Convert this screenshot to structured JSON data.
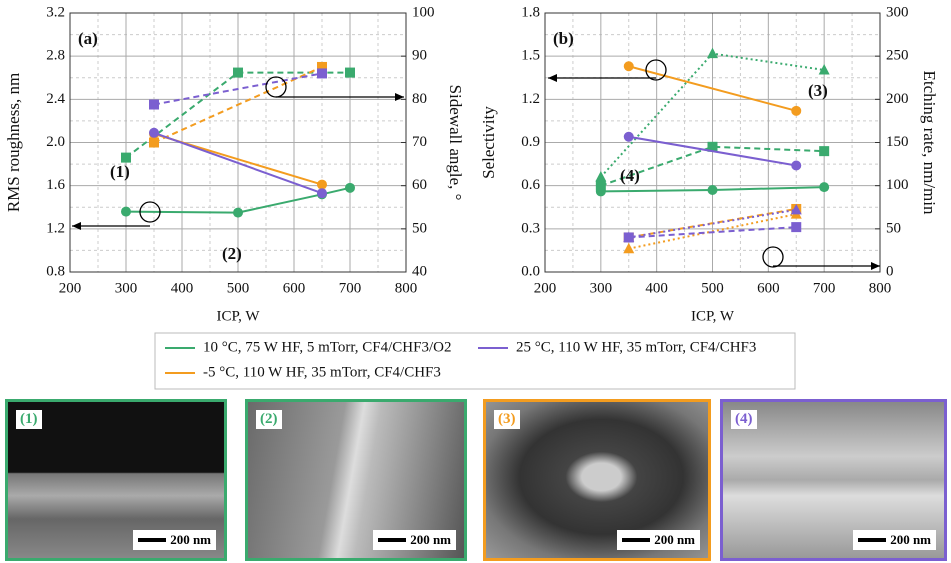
{
  "chart_data": [
    {
      "type": "line",
      "annotations": [
        {
          "text": "(a)",
          "color": "#111"
        },
        {
          "text": "(1)",
          "color": "#3aaa6e"
        },
        {
          "text": "(2)",
          "color": "#3aaa6e"
        }
      ],
      "xlabel": "ICP, W",
      "ylabel": "RMS roughness, nm",
      "y2label": "Sidewall angle, °",
      "xlim": [
        200,
        800
      ],
      "xticks": [
        200,
        300,
        400,
        500,
        600,
        700,
        800
      ],
      "ylim": [
        0.8,
        3.2
      ],
      "yticks": [
        0.8,
        1.2,
        1.6,
        {
          "value": 2,
          "label": "2.0"
        },
        2.4,
        2.8,
        3.2
      ],
      "y2lim": [
        40,
        100
      ],
      "y2ticks": [
        40,
        50,
        60,
        70,
        80,
        90,
        100
      ],
      "grid": true,
      "series": [
        {
          "color": "#3aaa6e",
          "style": "solid",
          "marker": "circle",
          "x": [
            300,
            500,
            650,
            700
          ],
          "values": [
            1.36,
            1.35,
            1.52,
            1.58
          ]
        },
        {
          "color": "#3aaa6e",
          "style": "dashed",
          "marker": "square",
          "axis": "y2",
          "x": [
            300,
            500,
            700
          ],
          "values": [
            66.5,
            86.2,
            86.2
          ]
        },
        {
          "color": "#f39c1f",
          "style": "solid",
          "marker": "circle",
          "x": [
            350,
            650
          ],
          "values": [
            2.08,
            1.61
          ]
        },
        {
          "color": "#f39c1f",
          "style": "dashed",
          "marker": "square",
          "axis": "y2",
          "x": [
            350,
            650
          ],
          "values": [
            70,
            87.5
          ]
        },
        {
          "color": "#7b5fd0",
          "style": "solid",
          "marker": "circle",
          "x": [
            350,
            650
          ],
          "values": [
            2.09,
            1.53
          ]
        },
        {
          "color": "#7b5fd0",
          "style": "dashed",
          "marker": "square",
          "axis": "y2",
          "x": [
            350,
            650
          ],
          "values": [
            78.8,
            86
          ]
        }
      ]
    },
    {
      "type": "line",
      "annotations": [
        {
          "text": "(b)",
          "color": "#111"
        },
        {
          "text": "(3)",
          "color": "#f39c1f"
        },
        {
          "text": "(4)",
          "color": "#7b5fd0"
        }
      ],
      "xlabel": "ICP, W",
      "ylabel": "Selectivity",
      "y2label": "Etching rate, nm/min",
      "xlim": [
        200,
        800
      ],
      "xticks": [
        200,
        300,
        400,
        500,
        600,
        700,
        800
      ],
      "ylim": [
        0,
        1.8
      ],
      "yticks": [
        {
          "value": 0,
          "label": "0.0"
        },
        0.3,
        0.6,
        0.9,
        1.2,
        1.5,
        1.8
      ],
      "y2lim": [
        0,
        300
      ],
      "y2ticks": [
        0,
        50,
        100,
        150,
        200,
        250,
        300
      ],
      "grid": true,
      "series": [
        {
          "color": "#3aaa6e",
          "style": "solid",
          "marker": "circle",
          "x": [
            300,
            500,
            700
          ],
          "values": [
            0.56,
            0.57,
            0.59
          ]
        },
        {
          "color": "#3aaa6e",
          "style": "dashed",
          "marker": "square",
          "axis": "y2",
          "x": [
            300,
            500,
            700
          ],
          "values": [
            100,
            145,
            140
          ]
        },
        {
          "color": "#3aaa6e",
          "style": "dotted",
          "marker": "triangle",
          "axis": "y2",
          "x": [
            300,
            500,
            700
          ],
          "values": [
            110,
            253,
            234
          ]
        },
        {
          "color": "#f39c1f",
          "style": "solid",
          "marker": "circle",
          "x": [
            350,
            650
          ],
          "values": [
            1.43,
            1.12
          ]
        },
        {
          "color": "#f39c1f",
          "style": "dashed",
          "marker": "square",
          "axis": "y2",
          "x": [
            350,
            650
          ],
          "values": [
            40,
            73
          ]
        },
        {
          "color": "#f39c1f",
          "style": "dotted",
          "marker": "triangle",
          "axis": "y2",
          "x": [
            350,
            650
          ],
          "values": [
            27,
            67
          ]
        },
        {
          "color": "#7b5fd0",
          "style": "solid",
          "marker": "circle",
          "x": [
            350,
            650
          ],
          "values": [
            0.94,
            0.74
          ]
        },
        {
          "color": "#7b5fd0",
          "style": "dashed",
          "marker": "square",
          "axis": "y2",
          "x": [
            350,
            650
          ],
          "values": [
            40,
            52
          ]
        },
        {
          "color": "#7b5fd0",
          "style": "dotted",
          "marker": "triangle",
          "axis": "y2",
          "x": [
            350,
            650
          ],
          "values": [
            40,
            72
          ]
        }
      ]
    }
  ],
  "legend": [
    {
      "name": "10 °C, 75 W HF, 5 mTorr, CF4/CHF3/O2",
      "color": "#3aaa6e"
    },
    {
      "name": "25 °C, 110 W HF, 35 mTorr, CF4/CHF3",
      "color": "#7b5fd0"
    },
    {
      "name": "-5 °C, 110 W HF, 35 mTorr, CF4/CHF3",
      "color": "#f39c1f"
    }
  ],
  "micrographs": [
    {
      "label": "(1)",
      "color": "#3aaa6e",
      "scale": "200 nm"
    },
    {
      "label": "(2)",
      "color": "#3aaa6e",
      "scale": "200 nm"
    },
    {
      "label": "(3)",
      "color": "#f39c1f",
      "scale": "200 nm"
    },
    {
      "label": "(4)",
      "color": "#7b5fd0",
      "scale": "200 nm"
    }
  ]
}
